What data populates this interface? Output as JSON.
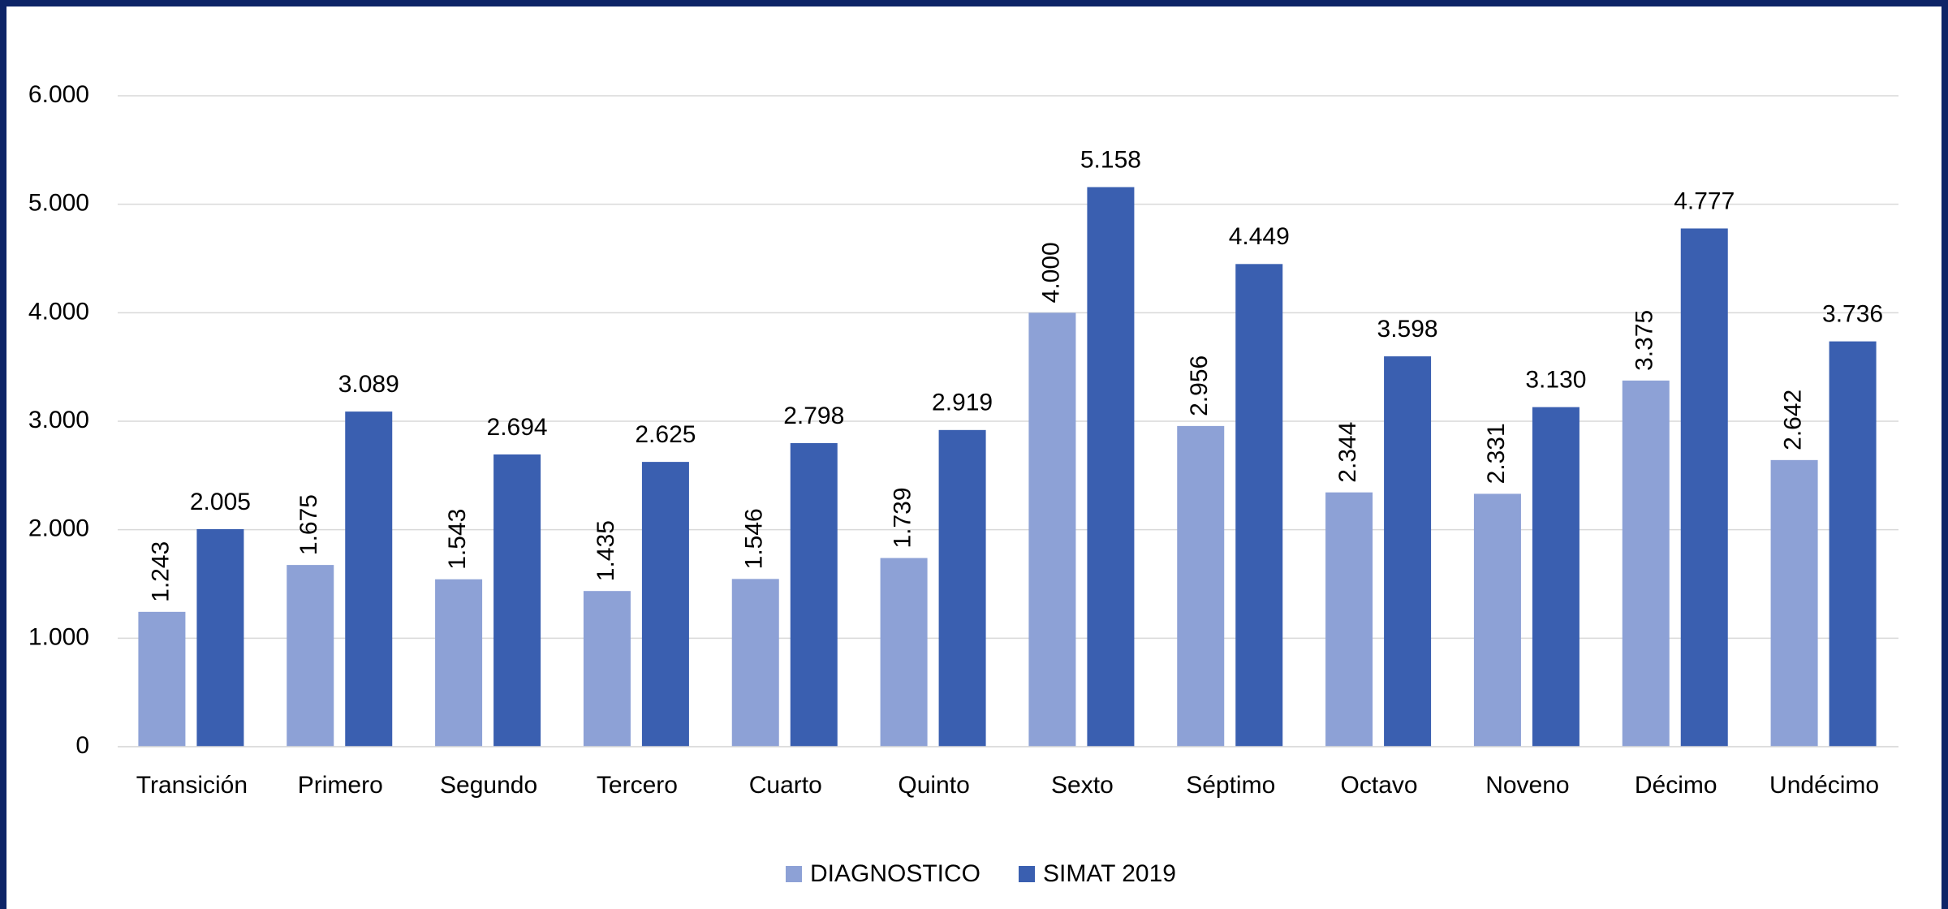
{
  "chart_data": {
    "type": "bar",
    "categories": [
      "Transición",
      "Primero",
      "Segundo",
      "Tercero",
      "Cuarto",
      "Quinto",
      "Sexto",
      "Séptimo",
      "Octavo",
      "Noveno",
      "Décimo",
      "Undécimo"
    ],
    "series": [
      {
        "name": "DIAGNOSTICO",
        "color": "#8da1d6",
        "values": [
          1243,
          1675,
          1543,
          1435,
          1546,
          1739,
          4000,
          2956,
          2344,
          2331,
          3375,
          2642
        ],
        "value_labels": [
          "1.243",
          "1.675",
          "1.543",
          "1.435",
          "1.546",
          "1.739",
          "4.000",
          "2.956",
          "2.344",
          "2.331",
          "3.375",
          "2.642"
        ]
      },
      {
        "name": "SIMAT 2019",
        "color": "#3a5fb0",
        "values": [
          2005,
          3089,
          2694,
          2625,
          2798,
          2919,
          5158,
          4449,
          3598,
          3130,
          4777,
          3736
        ],
        "value_labels": [
          "2.005",
          "3.089",
          "2.694",
          "2.625",
          "2.798",
          "2.919",
          "5.158",
          "4.449",
          "3.598",
          "3.130",
          "4.777",
          "3.736"
        ]
      }
    ],
    "ylim": [
      0,
      6000
    ],
    "yticks": [
      0,
      {
        "value": 1000,
        "label": "1.000"
      },
      {
        "value": 2000,
        "label": "2.000"
      },
      {
        "value": 3000,
        "label": "3.000"
      },
      {
        "value": 4000,
        "label": "4.000"
      },
      {
        "value": 5000,
        "label": "5.000"
      },
      {
        "value": 6000,
        "label": "6.000"
      }
    ],
    "grid": true
  }
}
